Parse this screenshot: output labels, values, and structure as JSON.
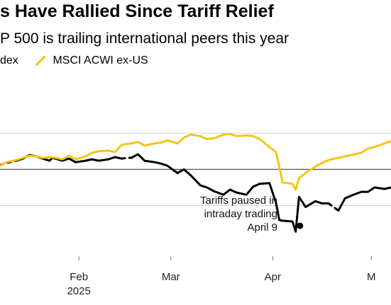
{
  "header": {
    "title": "s Have Rallied Since Tariff Relief",
    "subtitle": "P 500 is trailing international peers this year"
  },
  "legend": {
    "items": [
      {
        "label": "dex",
        "color": "#000000"
      },
      {
        "label": "MSCI ACWI ex-US",
        "color": "#f5c518"
      }
    ]
  },
  "chart_data": {
    "type": "line",
    "x_ticks": [
      {
        "label": "Feb",
        "sub": "2025",
        "date": "2025-02-01"
      },
      {
        "label": "Mar",
        "sub": "",
        "date": "2025-03-01"
      },
      {
        "label": "Apr",
        "sub": "",
        "date": "2025-04-01"
      },
      {
        "label": "M",
        "sub": "",
        "date": "2025-05-01"
      }
    ],
    "xlim": [
      "2025-01-08",
      "2025-05-07"
    ],
    "ylim": [
      -12,
      11
    ],
    "y_gridlines": [
      5,
      0,
      -5
    ],
    "reference_line": 0,
    "grid": true,
    "series": [
      {
        "name": "dex",
        "color": "#000000",
        "style": "solid",
        "points": [
          [
            "2025-01-08",
            0.6
          ],
          [
            "2025-01-10",
            0.9
          ],
          [
            "2025-01-13",
            1.2
          ],
          [
            "2025-01-15",
            1.5
          ],
          [
            "2025-01-17",
            2.0
          ],
          [
            "2025-01-19",
            1.8
          ],
          [
            "2025-01-21",
            1.5
          ],
          [
            "2025-01-23",
            1.2
          ],
          [
            "2025-01-24",
            1.6
          ],
          [
            "2025-01-27",
            1.2
          ],
          [
            "2025-01-29",
            1.5
          ],
          [
            "2025-01-31",
            1.0
          ],
          [
            "2025-02-03",
            1.2
          ],
          [
            "2025-02-05",
            1.4
          ],
          [
            "2025-02-07",
            1.2
          ],
          [
            "2025-02-10",
            1.4
          ],
          [
            "2025-02-12",
            1.7
          ],
          [
            "2025-02-14",
            1.5
          ],
          [
            "2025-02-16",
            1.6
          ],
          [
            "2025-02-17",
            1.6
          ],
          [
            "2025-02-19",
            2.1
          ],
          [
            "2025-02-21",
            1.2
          ],
          [
            "2025-02-24",
            1.0
          ],
          [
            "2025-02-26",
            0.8
          ],
          [
            "2025-02-28",
            0.5
          ],
          [
            "2025-03-03",
            -0.5
          ],
          [
            "2025-03-05",
            0.0
          ],
          [
            "2025-03-07",
            -0.8
          ],
          [
            "2025-03-10",
            -2.2
          ],
          [
            "2025-03-12",
            -2.5
          ],
          [
            "2025-03-14",
            -3.0
          ],
          [
            "2025-03-17",
            -3.5
          ],
          [
            "2025-03-19",
            -2.8
          ],
          [
            "2025-03-21",
            -3.2
          ],
          [
            "2025-03-24",
            -3.5
          ],
          [
            "2025-03-26",
            -2.4
          ],
          [
            "2025-03-28",
            -2.0
          ],
          [
            "2025-03-31",
            -1.9
          ],
          [
            "2025-04-02",
            -4.6
          ],
          [
            "2025-04-03",
            -7.0
          ],
          [
            "2025-04-04",
            -7.1
          ],
          [
            "2025-04-07",
            -7.2
          ],
          [
            "2025-04-08",
            -8.6
          ],
          [
            "2025-04-09",
            -3.8
          ],
          [
            "2025-04-11",
            -5.2
          ],
          [
            "2025-04-14",
            -4.4
          ],
          [
            "2025-04-16",
            -4.7
          ],
          [
            "2025-04-18",
            -4.7
          ],
          [
            "2025-04-21",
            -5.7
          ],
          [
            "2025-04-23",
            -4.0
          ],
          [
            "2025-04-25",
            -3.6
          ],
          [
            "2025-04-28",
            -3.1
          ],
          [
            "2025-04-30",
            -3.1
          ],
          [
            "2025-05-02",
            -2.5
          ],
          [
            "2025-05-05",
            -2.7
          ],
          [
            "2025-05-07",
            -2.5
          ]
        ],
        "dashed_segments": [
          [
            "2025-01-08",
            "2025-01-14"
          ],
          [
            "2025-02-14",
            "2025-02-18"
          ],
          [
            "2025-04-17",
            "2025-04-22"
          ]
        ]
      },
      {
        "name": "MSCI ACWI ex-US",
        "color": "#f5c518",
        "style": "solid",
        "points": [
          [
            "2025-01-08",
            0.5
          ],
          [
            "2025-01-10",
            1.0
          ],
          [
            "2025-01-13",
            1.3
          ],
          [
            "2025-01-15",
            1.6
          ],
          [
            "2025-01-17",
            1.9
          ],
          [
            "2025-01-19",
            1.8
          ],
          [
            "2025-01-21",
            1.6
          ],
          [
            "2025-01-23",
            1.7
          ],
          [
            "2025-01-25",
            1.6
          ],
          [
            "2025-01-27",
            1.4
          ],
          [
            "2025-01-29",
            1.9
          ],
          [
            "2025-01-31",
            1.4
          ],
          [
            "2025-02-03",
            1.8
          ],
          [
            "2025-02-05",
            2.3
          ],
          [
            "2025-02-07",
            2.5
          ],
          [
            "2025-02-10",
            2.6
          ],
          [
            "2025-02-12",
            2.4
          ],
          [
            "2025-02-14",
            3.4
          ],
          [
            "2025-02-17",
            3.6
          ],
          [
            "2025-02-19",
            3.8
          ],
          [
            "2025-02-21",
            3.3
          ],
          [
            "2025-02-24",
            3.6
          ],
          [
            "2025-02-26",
            3.7
          ],
          [
            "2025-02-28",
            4.0
          ],
          [
            "2025-03-03",
            3.6
          ],
          [
            "2025-03-05",
            4.4
          ],
          [
            "2025-03-07",
            4.8
          ],
          [
            "2025-03-10",
            4.6
          ],
          [
            "2025-03-12",
            4.2
          ],
          [
            "2025-03-14",
            4.3
          ],
          [
            "2025-03-17",
            4.8
          ],
          [
            "2025-03-19",
            4.9
          ],
          [
            "2025-03-21",
            4.6
          ],
          [
            "2025-03-24",
            4.7
          ],
          [
            "2025-03-26",
            4.6
          ],
          [
            "2025-03-28",
            4.2
          ],
          [
            "2025-03-31",
            3.1
          ],
          [
            "2025-04-02",
            2.4
          ],
          [
            "2025-04-03",
            0.4
          ],
          [
            "2025-04-04",
            -1.8
          ],
          [
            "2025-04-07",
            -2.0
          ],
          [
            "2025-04-08",
            -2.8
          ],
          [
            "2025-04-09",
            -1.2
          ],
          [
            "2025-04-11",
            -0.5
          ],
          [
            "2025-04-14",
            0.4
          ],
          [
            "2025-04-16",
            0.9
          ],
          [
            "2025-04-18",
            1.3
          ],
          [
            "2025-04-21",
            1.6
          ],
          [
            "2025-04-23",
            1.8
          ],
          [
            "2025-04-25",
            2.0
          ],
          [
            "2025-04-28",
            2.3
          ],
          [
            "2025-04-30",
            2.9
          ],
          [
            "2025-05-02",
            3.1
          ],
          [
            "2025-05-05",
            3.6
          ],
          [
            "2025-05-07",
            3.9
          ]
        ]
      }
    ],
    "annotation": {
      "lines": [
        "Tariffs paused in",
        "intraday trading",
        "April 9"
      ],
      "point": [
        "2025-04-08",
        -7.8
      ]
    }
  }
}
